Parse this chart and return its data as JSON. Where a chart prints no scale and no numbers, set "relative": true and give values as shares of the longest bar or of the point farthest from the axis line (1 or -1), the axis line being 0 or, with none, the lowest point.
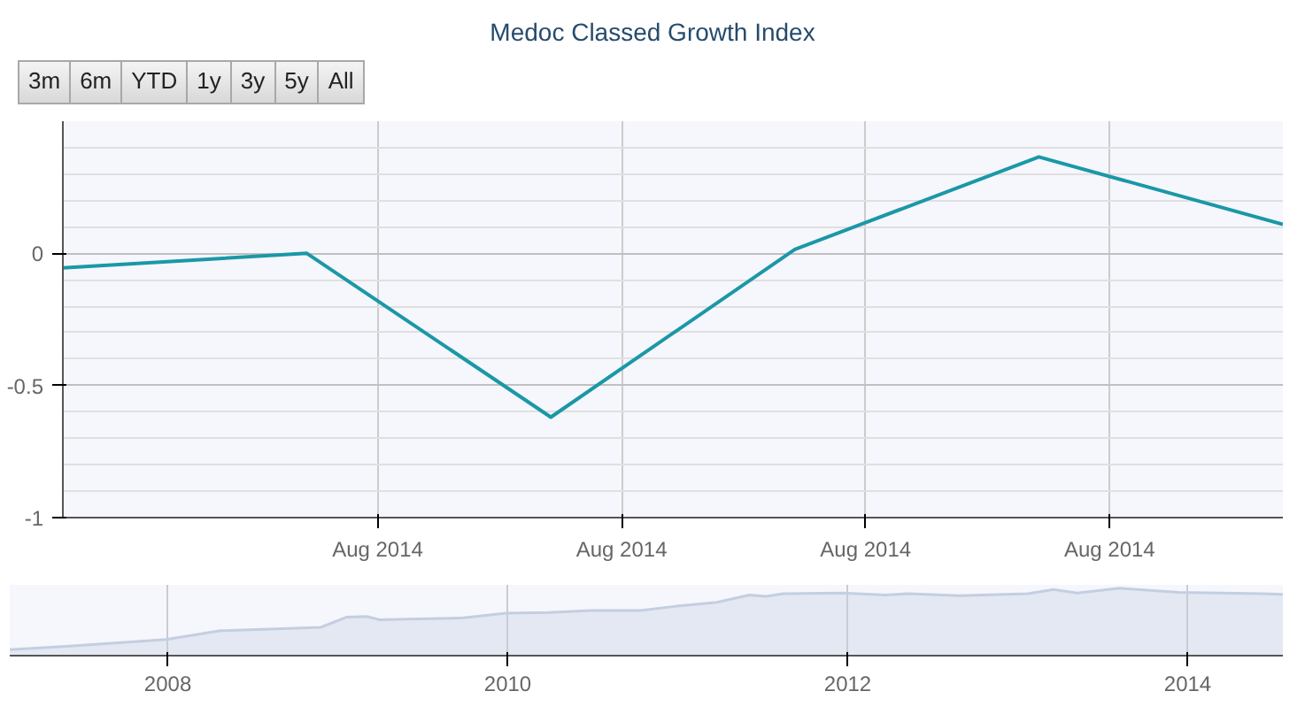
{
  "chart_data": [
    {
      "type": "other",
      "title": "Medoc Classed Growth Index",
      "annotations": [
        "3m",
        "6m",
        "YTD",
        "1y",
        "3y",
        "5y",
        "All"
      ]
    },
    {
      "type": "line",
      "categories": [
        null,
        null,
        null,
        null,
        null,
        null
      ],
      "annotations": [
        "Aug 2014",
        "Aug 2014",
        "Aug 2014",
        "Aug 2014"
      ],
      "series": [
        {
          "color": "#1a98a6",
          "values": [
            -0.055,
            0.0,
            -0.62,
            0.015,
            0.365,
            0.11
          ]
        }
      ],
      "ylim": [
        -1,
        0.5
      ],
      "yticks": [
        0,
        -0.5,
        -1
      ],
      "grid": true,
      "marker": "none",
      "line_style": "solid"
    },
    {
      "type": "area",
      "relative": true,
      "x": [
        2007.07,
        2007.42,
        2007.99,
        2008.31,
        2008.9,
        2009.05,
        2009.17,
        2009.25,
        2009.4,
        2009.74,
        2009.99,
        2010.24,
        2010.49,
        2010.78,
        2010.98,
        2011.23,
        2011.42,
        2011.52,
        2011.62,
        2011.97,
        2012.22,
        2012.36,
        2012.66,
        2013.06,
        2013.21,
        2013.35,
        2013.6,
        2013.95,
        2014.44,
        2014.56
      ],
      "series": [
        {
          "color": "#c3cfe0",
          "values": [
            0.09,
            0.14,
            0.24,
            0.37,
            0.42,
            0.57,
            0.58,
            0.53,
            0.54,
            0.56,
            0.63,
            0.64,
            0.67,
            0.67,
            0.73,
            0.79,
            0.9,
            0.88,
            0.92,
            0.93,
            0.9,
            0.92,
            0.89,
            0.92,
            0.98,
            0.93,
            1.0,
            0.94,
            0.92,
            0.91
          ]
        }
      ],
      "xlim": [
        2007.07,
        2014.56
      ],
      "xticks": [
        2008,
        2010,
        2012,
        2014
      ],
      "grid": "x"
    }
  ]
}
